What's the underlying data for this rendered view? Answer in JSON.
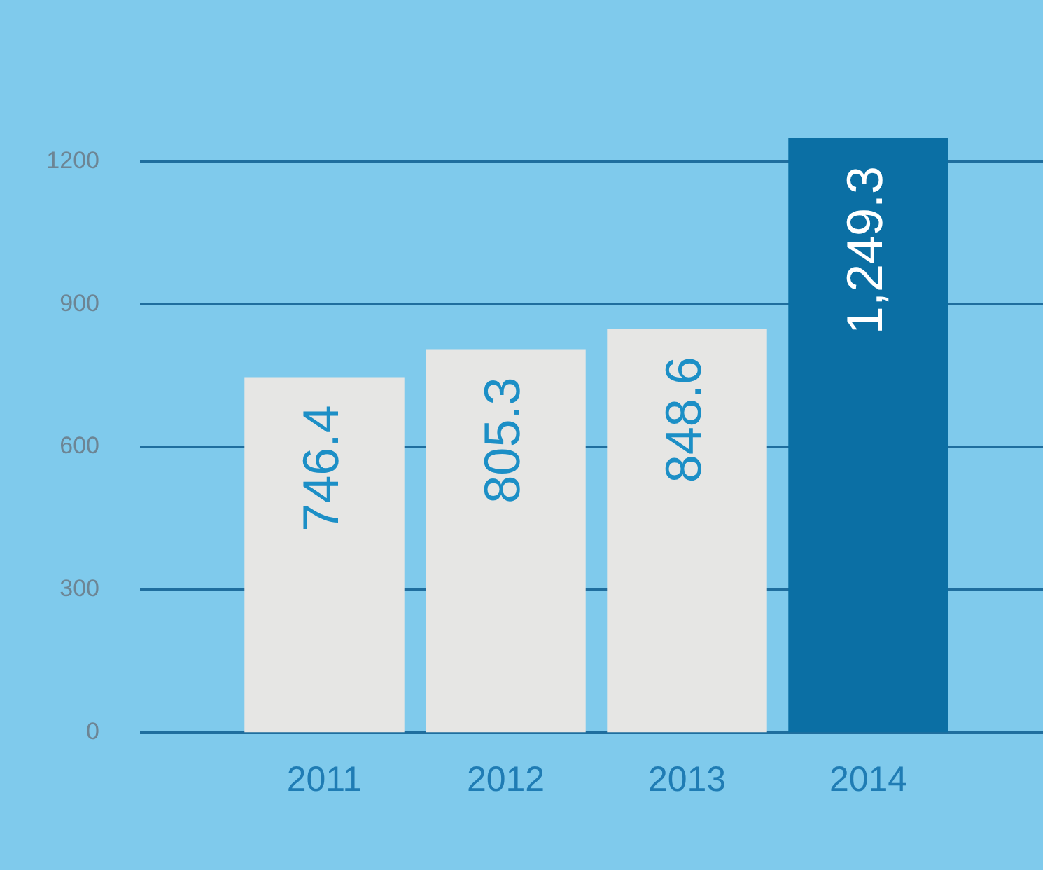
{
  "chart_data": {
    "type": "bar",
    "categories": [
      "2011",
      "2012",
      "2013",
      "2014"
    ],
    "values": [
      746.4,
      805.3,
      848.6,
      1249.3
    ],
    "colors": [
      "#e6e6e4",
      "#e6e6e4",
      "#e6e6e4",
      "#0b6fa4"
    ],
    "value_labels": [
      "746.4",
      "805.3",
      "848.6",
      "1,249.3"
    ],
    "ylim": [
      0,
      1250
    ],
    "yticks": [
      0,
      300,
      600,
      900,
      1200
    ],
    "grid": "y",
    "legend": false
  }
}
